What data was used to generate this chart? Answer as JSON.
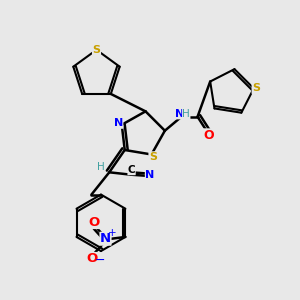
{
  "background_color": "#e8e8e8",
  "bond_color": "#000000",
  "atom_colors": {
    "S": "#c8a000",
    "N": "#0000ff",
    "O": "#ff0000",
    "C": "#000000",
    "H": "#40a0a0"
  },
  "figsize": [
    3.0,
    3.0
  ],
  "dpi": 100
}
